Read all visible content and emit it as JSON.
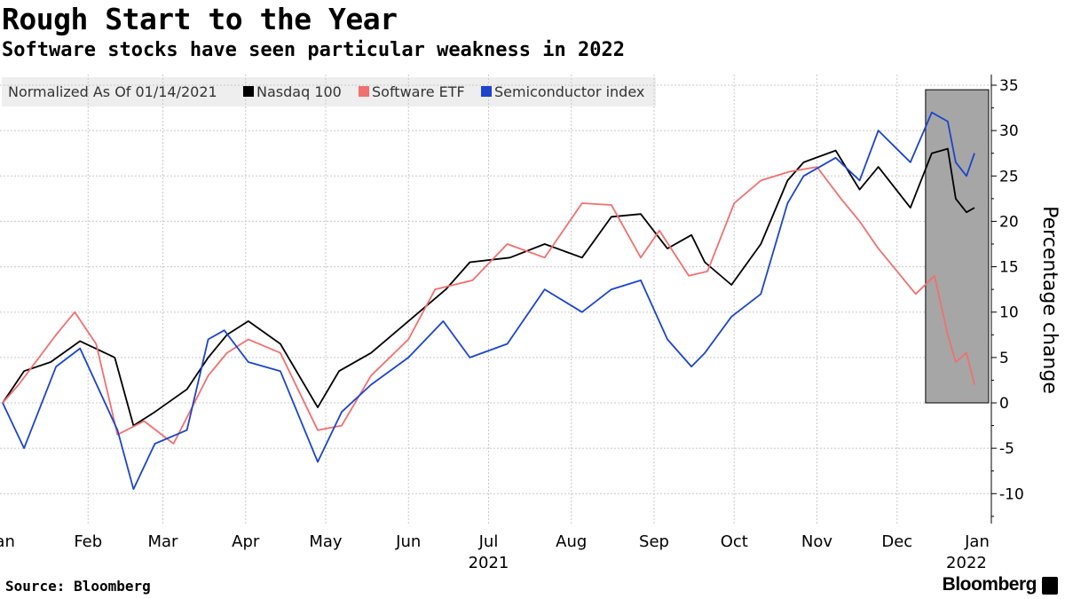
{
  "title": "Rough Start to the Year",
  "subtitle": "Software stocks have seen particular weakness in 2022",
  "source": "Source: Bloomberg",
  "brand": "Bloomberg",
  "chart_data": {
    "type": "line",
    "legend": {
      "placement": "top-left",
      "caption": "Normalized As Of 01/14/2021",
      "entries": [
        "Nasdaq 100",
        "Software ETF",
        "Semiconductor index"
      ]
    },
    "ylabel": "Percentage change",
    "ylim": [
      -13,
      35
    ],
    "yticks": [
      35,
      30,
      25,
      20,
      15,
      10,
      5,
      0,
      -5,
      -10
    ],
    "y_axis_side": "right",
    "grid": true,
    "xlim": [
      "2021-01-14",
      "2022-01-14"
    ],
    "xticks": [
      {
        "label": "Jan",
        "date": "2021-01-14"
      },
      {
        "label": "Feb",
        "date": "2021-02-15"
      },
      {
        "label": "Mar",
        "date": "2021-03-15"
      },
      {
        "label": "Apr",
        "date": "2021-04-15"
      },
      {
        "label": "May",
        "date": "2021-05-15"
      },
      {
        "label": "Jun",
        "date": "2021-06-15"
      },
      {
        "label": "Jul",
        "date": "2021-07-15"
      },
      {
        "label": "Aug",
        "date": "2021-08-15"
      },
      {
        "label": "Sep",
        "date": "2021-09-15"
      },
      {
        "label": "Oct",
        "date": "2021-10-15"
      },
      {
        "label": "Nov",
        "date": "2021-11-15"
      },
      {
        "label": "Dec",
        "date": "2021-12-15"
      },
      {
        "label": "Jan",
        "date": "2022-01-14"
      }
    ],
    "year_labels": [
      {
        "label": "2021",
        "date": "2021-07-15"
      },
      {
        "label": "2022",
        "date": "2022-01-10"
      }
    ],
    "highlight": {
      "x_range": [
        "2021-12-31",
        "2022-01-14"
      ],
      "y_range": [
        0,
        34.5
      ],
      "color": "#a6a6a6"
    },
    "series": [
      {
        "name": "Nasdaq 100",
        "color": "#000000",
        "x": [
          "2021-01-14",
          "2021-01-22",
          "2021-02-01",
          "2021-02-12",
          "2021-02-25",
          "2021-03-04",
          "2021-03-12",
          "2021-03-24",
          "2021-04-01",
          "2021-04-08",
          "2021-04-16",
          "2021-04-28",
          "2021-05-12",
          "2021-05-20",
          "2021-06-01",
          "2021-06-15",
          "2021-06-29",
          "2021-07-08",
          "2021-07-23",
          "2021-08-05",
          "2021-08-19",
          "2021-08-30",
          "2021-09-10",
          "2021-09-20",
          "2021-09-29",
          "2021-10-04",
          "2021-10-14",
          "2021-10-25",
          "2021-11-04",
          "2021-11-10",
          "2021-11-22",
          "2021-12-01",
          "2021-12-08",
          "2021-12-20",
          "2021-12-28",
          "2022-01-03",
          "2022-01-06",
          "2022-01-10",
          "2022-01-13"
        ],
        "y": [
          0,
          3.5,
          4.5,
          6.8,
          5,
          -2.5,
          -1,
          1.5,
          5,
          7.5,
          9,
          6.5,
          -0.5,
          3.5,
          5.5,
          9,
          12.5,
          15.5,
          16,
          17.5,
          16,
          20.5,
          20.8,
          17,
          18.5,
          15.5,
          13,
          17.5,
          24.5,
          26.5,
          27.8,
          23.5,
          26,
          21.5,
          27.5,
          28,
          22.5,
          21,
          21.5
        ]
      },
      {
        "name": "Software ETF",
        "color": "#f07070",
        "x": [
          "2021-01-14",
          "2021-01-20",
          "2021-02-03",
          "2021-02-10",
          "2021-02-18",
          "2021-02-26",
          "2021-03-08",
          "2021-03-19",
          "2021-04-01",
          "2021-04-08",
          "2021-04-16",
          "2021-04-28",
          "2021-05-12",
          "2021-05-21",
          "2021-06-01",
          "2021-06-15",
          "2021-06-25",
          "2021-07-09",
          "2021-07-22",
          "2021-08-05",
          "2021-08-19",
          "2021-08-30",
          "2021-09-10",
          "2021-09-17",
          "2021-09-28",
          "2021-10-05",
          "2021-10-15",
          "2021-10-25",
          "2021-11-05",
          "2021-11-15",
          "2021-11-24",
          "2021-12-01",
          "2021-12-08",
          "2021-12-15",
          "2021-12-22",
          "2021-12-29",
          "2022-01-03",
          "2022-01-06",
          "2022-01-10",
          "2022-01-13"
        ],
        "y": [
          0,
          2,
          7.5,
          10,
          6.5,
          -3.5,
          -2,
          -4.5,
          3,
          5.5,
          7,
          5.5,
          -3,
          -2.5,
          3,
          7,
          12.5,
          13.5,
          17.5,
          16,
          22,
          21.8,
          16,
          19,
          14,
          14.5,
          22,
          24.5,
          25.5,
          26,
          22.5,
          20,
          17,
          14.5,
          12,
          14,
          7.5,
          4.5,
          5.5,
          2
        ]
      },
      {
        "name": "Semiconductor index",
        "color": "#1c44cc",
        "x": [
          "2021-01-14",
          "2021-01-22",
          "2021-02-03",
          "2021-02-12",
          "2021-02-26",
          "2021-03-04",
          "2021-03-12",
          "2021-03-24",
          "2021-04-01",
          "2021-04-07",
          "2021-04-16",
          "2021-04-28",
          "2021-05-12",
          "2021-05-21",
          "2021-06-01",
          "2021-06-15",
          "2021-06-28",
          "2021-07-08",
          "2021-07-22",
          "2021-08-05",
          "2021-08-19",
          "2021-08-30",
          "2021-09-10",
          "2021-09-20",
          "2021-09-29",
          "2021-10-04",
          "2021-10-14",
          "2021-10-25",
          "2021-11-04",
          "2021-11-10",
          "2021-11-22",
          "2021-12-01",
          "2021-12-08",
          "2021-12-20",
          "2021-12-28",
          "2022-01-03",
          "2022-01-06",
          "2022-01-10",
          "2022-01-13"
        ],
        "y": [
          0,
          -5,
          4,
          6,
          -3,
          -9.5,
          -4.5,
          -3,
          7,
          8,
          4.5,
          3.5,
          -6.5,
          -1,
          2,
          5,
          9,
          5,
          6.5,
          12.5,
          10,
          12.5,
          13.5,
          7,
          4,
          5.5,
          9.5,
          12,
          22,
          25,
          27,
          24.5,
          30,
          26.5,
          32,
          31,
          26.5,
          25,
          27.5
        ]
      }
    ]
  }
}
